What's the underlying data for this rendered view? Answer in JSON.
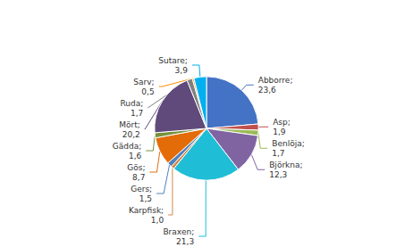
{
  "chart_data": {
    "type": "pie",
    "categories": [
      "Abborre",
      "Asp",
      "Benlöja",
      "Björkna",
      "Braxen",
      "Karpfisk",
      "Gers",
      "Gös",
      "Gädda",
      "Mört",
      "Ruda",
      "Sarv",
      "Sutare"
    ],
    "values": [
      23.6,
      1.9,
      1.7,
      12.3,
      21.3,
      1.0,
      1.5,
      8.7,
      1.6,
      20.2,
      1.7,
      0.5,
      3.9
    ],
    "value_labels": [
      "Abborre;\n23,6",
      "Asp;\n1,9",
      "Benlöja;\n1,7",
      "Björkna;\n12,3",
      "Braxen;\n21,3",
      "Karpfisk;\n1,0",
      "Gers;\n1,5",
      "Gös;\n8,7",
      "Gädda;\n1,6",
      "Mört;\n20,2",
      "Ruda;\n1,7",
      "Sarv;\n0,5",
      "Sutare;\n3,9"
    ],
    "colors": [
      "#4472C4",
      "#C0504D",
      "#9BBB59",
      "#8064A2",
      "#1FBED6",
      "#D2874A",
      "#4F81BD",
      "#E36C09",
      "#76923C",
      "#604A7B",
      "#808080",
      "#FF8C00",
      "#00B0F0"
    ],
    "legend": false
  }
}
